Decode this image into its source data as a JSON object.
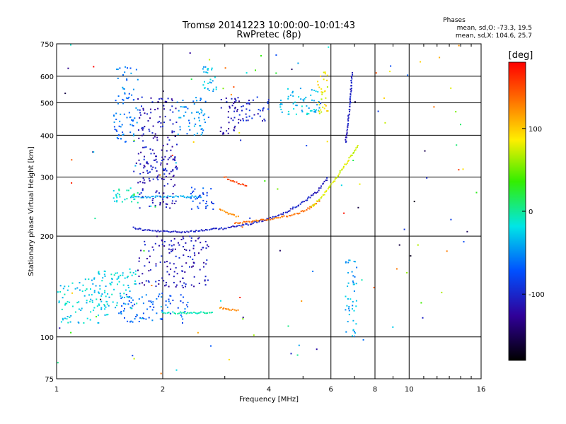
{
  "chart_data": {
    "type": "scatter",
    "title": "Tromsø 20141223 10:00:00–10:01:43",
    "subtitle": "RwPretec (8p)",
    "xlabel": "Frequency [MHz]",
    "ylabel": "Stationary phase Virtual Height [km]",
    "x_scale": "log",
    "y_scale": "log",
    "xlim": [
      1,
      16
    ],
    "ylim": [
      75,
      750
    ],
    "x_ticks": [
      1,
      2,
      4,
      6,
      8,
      10,
      16
    ],
    "x_tick_labels": [
      "1",
      "2",
      "4",
      "6",
      "8",
      "10",
      "16"
    ],
    "y_ticks": [
      75,
      100,
      200,
      300,
      400,
      500,
      600,
      750
    ],
    "y_tick_labels": [
      "75",
      "100",
      "200",
      "300",
      "400",
      "500",
      "600",
      "750"
    ],
    "grid": true,
    "stats": {
      "title": "Phases",
      "o_line": "mean, sd,O: -73.3, 19.5",
      "x_line": "mean, sd,X: 104.6, 25.7"
    },
    "colorbar": {
      "label": "[deg]",
      "range": [
        -180,
        180
      ],
      "ticks": [
        100,
        0,
        -100
      ],
      "tick_labels": [
        "100",
        "0",
        "-100"
      ],
      "colormap": "rainbow"
    },
    "traces": [
      {
        "x": [
          1.65,
          1.75,
          1.9,
          2.1,
          2.3,
          2.6,
          3.0,
          3.5,
          4.0,
          4.5,
          5.0,
          5.5,
          5.9
        ],
        "y": [
          212,
          209,
          207,
          206,
          206,
          208,
          211,
          217,
          225,
          236,
          252,
          272,
          300
        ],
        "phase": -105
      },
      {
        "x": [
          3.2,
          3.5,
          3.9,
          4.3,
          4.8,
          5.2,
          5.6
        ],
        "y": [
          218,
          221,
          224,
          227,
          233,
          242,
          256
        ],
        "phase": 135
      },
      {
        "x": [
          5.3,
          5.7,
          6.1,
          6.5,
          6.9,
          7.2
        ],
        "y": [
          245,
          265,
          290,
          320,
          350,
          375
        ],
        "phase": 75
      },
      {
        "x": [
          6.6,
          6.7,
          6.8,
          6.85,
          6.9
        ],
        "y": [
          380,
          430,
          490,
          560,
          620
        ],
        "phase": -105
      },
      {
        "x": [
          2.0,
          2.2,
          2.4,
          2.6,
          2.8
        ],
        "y": [
          118,
          118,
          118,
          118,
          118
        ],
        "phase": -5
      },
      {
        "x": [
          2.9,
          3.1,
          3.3
        ],
        "y": [
          122,
          121,
          120
        ],
        "phase": 125
      },
      {
        "x": [
          2.9,
          3.1,
          3.3
        ],
        "y": [
          240,
          233,
          228
        ],
        "phase": 125
      },
      {
        "x": [
          3.0,
          3.2,
          3.5
        ],
        "y": [
          300,
          290,
          282
        ],
        "phase": 155
      },
      {
        "x": [
          1.62,
          1.75,
          1.9,
          2.05,
          2.2,
          2.4,
          2.6
        ],
        "y": [
          262,
          262,
          262,
          262,
          262,
          262,
          262
        ],
        "phase": -40
      }
    ],
    "clusters": [
      {
        "x": [
          1.45,
          1.7
        ],
        "y": [
          380,
          640
        ],
        "phase": -60
      },
      {
        "x": [
          1.7,
          2.2
        ],
        "y": [
          240,
          520
        ],
        "phase": -110
      },
      {
        "x": [
          2.2,
          2.7
        ],
        "y": [
          400,
          520
        ],
        "phase": -50
      },
      {
        "x": [
          2.6,
          2.85
        ],
        "y": [
          540,
          640
        ],
        "phase": -35
      },
      {
        "x": [
          2.9,
          3.3
        ],
        "y": [
          400,
          520
        ],
        "phase": -115
      },
      {
        "x": [
          3.3,
          4.0
        ],
        "y": [
          440,
          520
        ],
        "phase": -100
      },
      {
        "x": [
          4.2,
          5.6
        ],
        "y": [
          460,
          560
        ],
        "phase": -30
      },
      {
        "x": [
          5.5,
          5.9
        ],
        "y": [
          460,
          620
        ],
        "phase": 85
      },
      {
        "x": [
          1.7,
          2.7
        ],
        "y": [
          140,
          200
        ],
        "phase": -110
      },
      {
        "x": [
          1.5,
          2.4
        ],
        "y": [
          110,
          135
        ],
        "phase": -70
      },
      {
        "x": [
          1.0,
          1.4
        ],
        "y": [
          110,
          150
        ],
        "phase": -25
      },
      {
        "x": [
          1.3,
          1.7
        ],
        "y": [
          120,
          160
        ],
        "phase": -25
      },
      {
        "x": [
          6.6,
          7.1
        ],
        "y": [
          100,
          170
        ],
        "phase": -40
      },
      {
        "x": [
          1.65,
          2.2
        ],
        "y": [
          300,
          340
        ],
        "phase": -105
      },
      {
        "x": [
          1.45,
          1.7
        ],
        "y": [
          250,
          280
        ],
        "phase": -15
      },
      {
        "x": [
          2.4,
          2.8
        ],
        "y": [
          240,
          280
        ],
        "phase": -75
      }
    ]
  }
}
